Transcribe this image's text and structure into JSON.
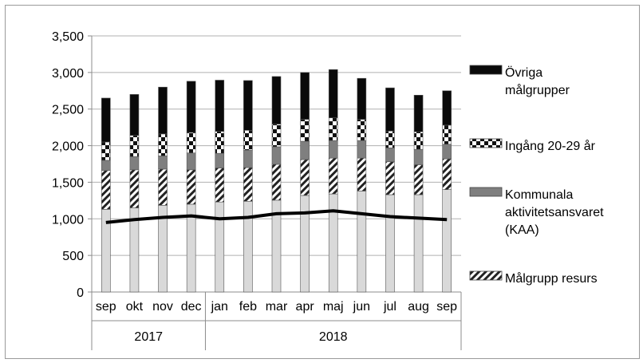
{
  "chart_data": {
    "type": "bar",
    "stacked": true,
    "categories": [
      "sep",
      "okt",
      "nov",
      "dec",
      "jan",
      "feb",
      "mar",
      "apr",
      "maj",
      "jun",
      "jul",
      "aug",
      "sep"
    ],
    "years": [
      {
        "label": "2017",
        "span": 4
      },
      {
        "label": "2018",
        "span": 9
      }
    ],
    "yticks": [
      "0",
      "500",
      "1,000",
      "1,500",
      "2,000",
      "2,500",
      "3,000",
      "3,500"
    ],
    "ylim": [
      0,
      3500
    ],
    "grid": true,
    "legend_position": "right",
    "series": [
      {
        "name": "",
        "key": "base",
        "pattern": "lightgray",
        "values": [
          1130,
          1150,
          1185,
          1200,
          1230,
          1240,
          1255,
          1320,
          1340,
          1380,
          1330,
          1330,
          1400
        ]
      },
      {
        "name": "Målgrupp resurs",
        "key": "resurs",
        "pattern": "diagonal",
        "values": [
          530,
          520,
          495,
          470,
          465,
          460,
          490,
          490,
          490,
          450,
          450,
          410,
          420
        ]
      },
      {
        "name": "Kommunala aktivitetsansvaret (KAA)",
        "key": "kaa",
        "pattern": "gray",
        "values": [
          140,
          180,
          180,
          230,
          200,
          240,
          240,
          250,
          240,
          240,
          190,
          210,
          200
        ]
      },
      {
        "name": "Ingång 20-29 år",
        "key": "ingang",
        "pattern": "checker",
        "values": [
          250,
          290,
          300,
          280,
          300,
          270,
          310,
          300,
          310,
          290,
          230,
          240,
          260
        ]
      },
      {
        "name": "Övriga målgrupper",
        "key": "ovriga",
        "pattern": "black",
        "values": [
          600,
          560,
          640,
          700,
          700,
          680,
          650,
          640,
          660,
          560,
          590,
          500,
          470
        ]
      }
    ],
    "line": {
      "name": "",
      "values": [
        950,
        990,
        1020,
        1040,
        1000,
        1020,
        1070,
        1080,
        1110,
        1070,
        1030,
        1010,
        990
      ]
    }
  },
  "legend": [
    {
      "lines": [
        "Övriga",
        "målgrupper"
      ],
      "pattern": "black"
    },
    {
      "lines": [
        "Ingång 20-29 år"
      ],
      "pattern": "checker"
    },
    {
      "lines": [
        "Kommunala",
        "aktivitetsansvaret",
        "(KAA)"
      ],
      "pattern": "gray"
    },
    {
      "lines": [
        "Målgrupp resurs"
      ],
      "pattern": "diagonal"
    }
  ],
  "colors": {
    "black": "#0a0a0a",
    "gray": "#7f7f7f",
    "lightgray": "#d9d9d9",
    "line": "#000000",
    "grid": "#b0b0b0"
  }
}
